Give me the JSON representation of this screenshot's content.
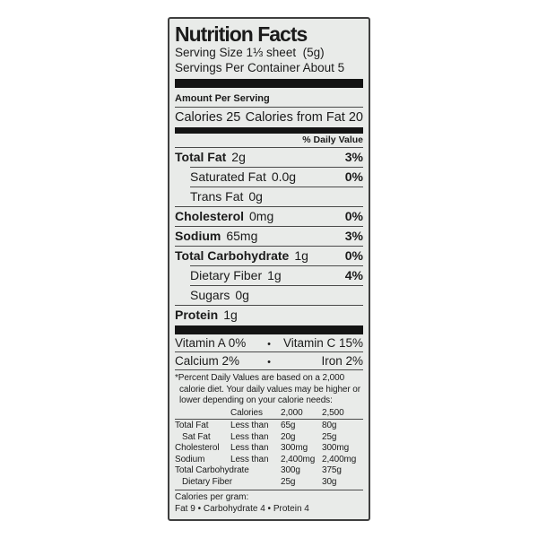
{
  "colors": {
    "page_bg": "#ffffff",
    "label_bg": "#e9ebe9",
    "text": "#1b1b1b",
    "border": "#3f3f3f",
    "bar": "#141414",
    "hairline": "#4a4a4a"
  },
  "label": {
    "title": "Nutrition Facts",
    "serving_size": "Serving Size 1⅓ sheet  (5g)",
    "servings_per_container": "Servings Per Container About 5",
    "amount_per_serving": "Amount Per Serving",
    "calories": "Calories 25",
    "calories_from_fat": "Calories from Fat 20",
    "daily_value_header": "% Daily Value",
    "nutrients": [
      {
        "name": "Total Fat",
        "amount": "2g",
        "dv": "3%"
      },
      {
        "name": "Saturated Fat",
        "amount": "0.0g",
        "dv": "0%"
      },
      {
        "name": "Trans Fat",
        "amount": "0g",
        "dv": ""
      },
      {
        "name": "Cholesterol",
        "amount": "0mg",
        "dv": "0%"
      },
      {
        "name": "Sodium",
        "amount": "65mg",
        "dv": "3%"
      },
      {
        "name": "Total Carbohydrate",
        "amount": "1g",
        "dv": "0%"
      },
      {
        "name": "Dietary Fiber",
        "amount": "1g",
        "dv": "4%"
      },
      {
        "name": "Sugars",
        "amount": "0g",
        "dv": ""
      },
      {
        "name": "Protein",
        "amount": "1g",
        "dv": ""
      }
    ],
    "vitamins": [
      {
        "left": "Vitamin A 0%",
        "bullet": "•",
        "right": "Vitamin C 15%"
      },
      {
        "left": "Calcium 2%",
        "bullet": "•",
        "right": "Iron 2%"
      }
    ],
    "footnote": "*Percent Daily Values are based on a 2,000 calorie diet. Your daily values may be higher or lower depending on your calorie needs:",
    "footnote_table": {
      "header": {
        "c2": "Calories",
        "c3": "2,000",
        "c4": "2,500"
      },
      "rows": [
        {
          "c1": "Total Fat",
          "c2": "Less than",
          "c3": "65g",
          "c4": "80g"
        },
        {
          "c1": "Sat Fat",
          "c2": "Less than",
          "c3": "20g",
          "c4": "25g"
        },
        {
          "c1": "Cholesterol",
          "c2": "Less than",
          "c3": "300mg",
          "c4": "300mg"
        },
        {
          "c1": "Sodium",
          "c2": "Less than",
          "c3": "2,400mg",
          "c4": "2,400mg"
        },
        {
          "c1": "Total Carbohydrate",
          "c2": "",
          "c3": "300g",
          "c4": "375g"
        },
        {
          "c1": "Dietary Fiber",
          "c2": "",
          "c3": "25g",
          "c4": "30g"
        }
      ]
    },
    "calories_per_gram_label": "Calories per gram:",
    "calories_per_gram_values": "Fat 9 • Carbohydrate 4 • Protein 4"
  }
}
